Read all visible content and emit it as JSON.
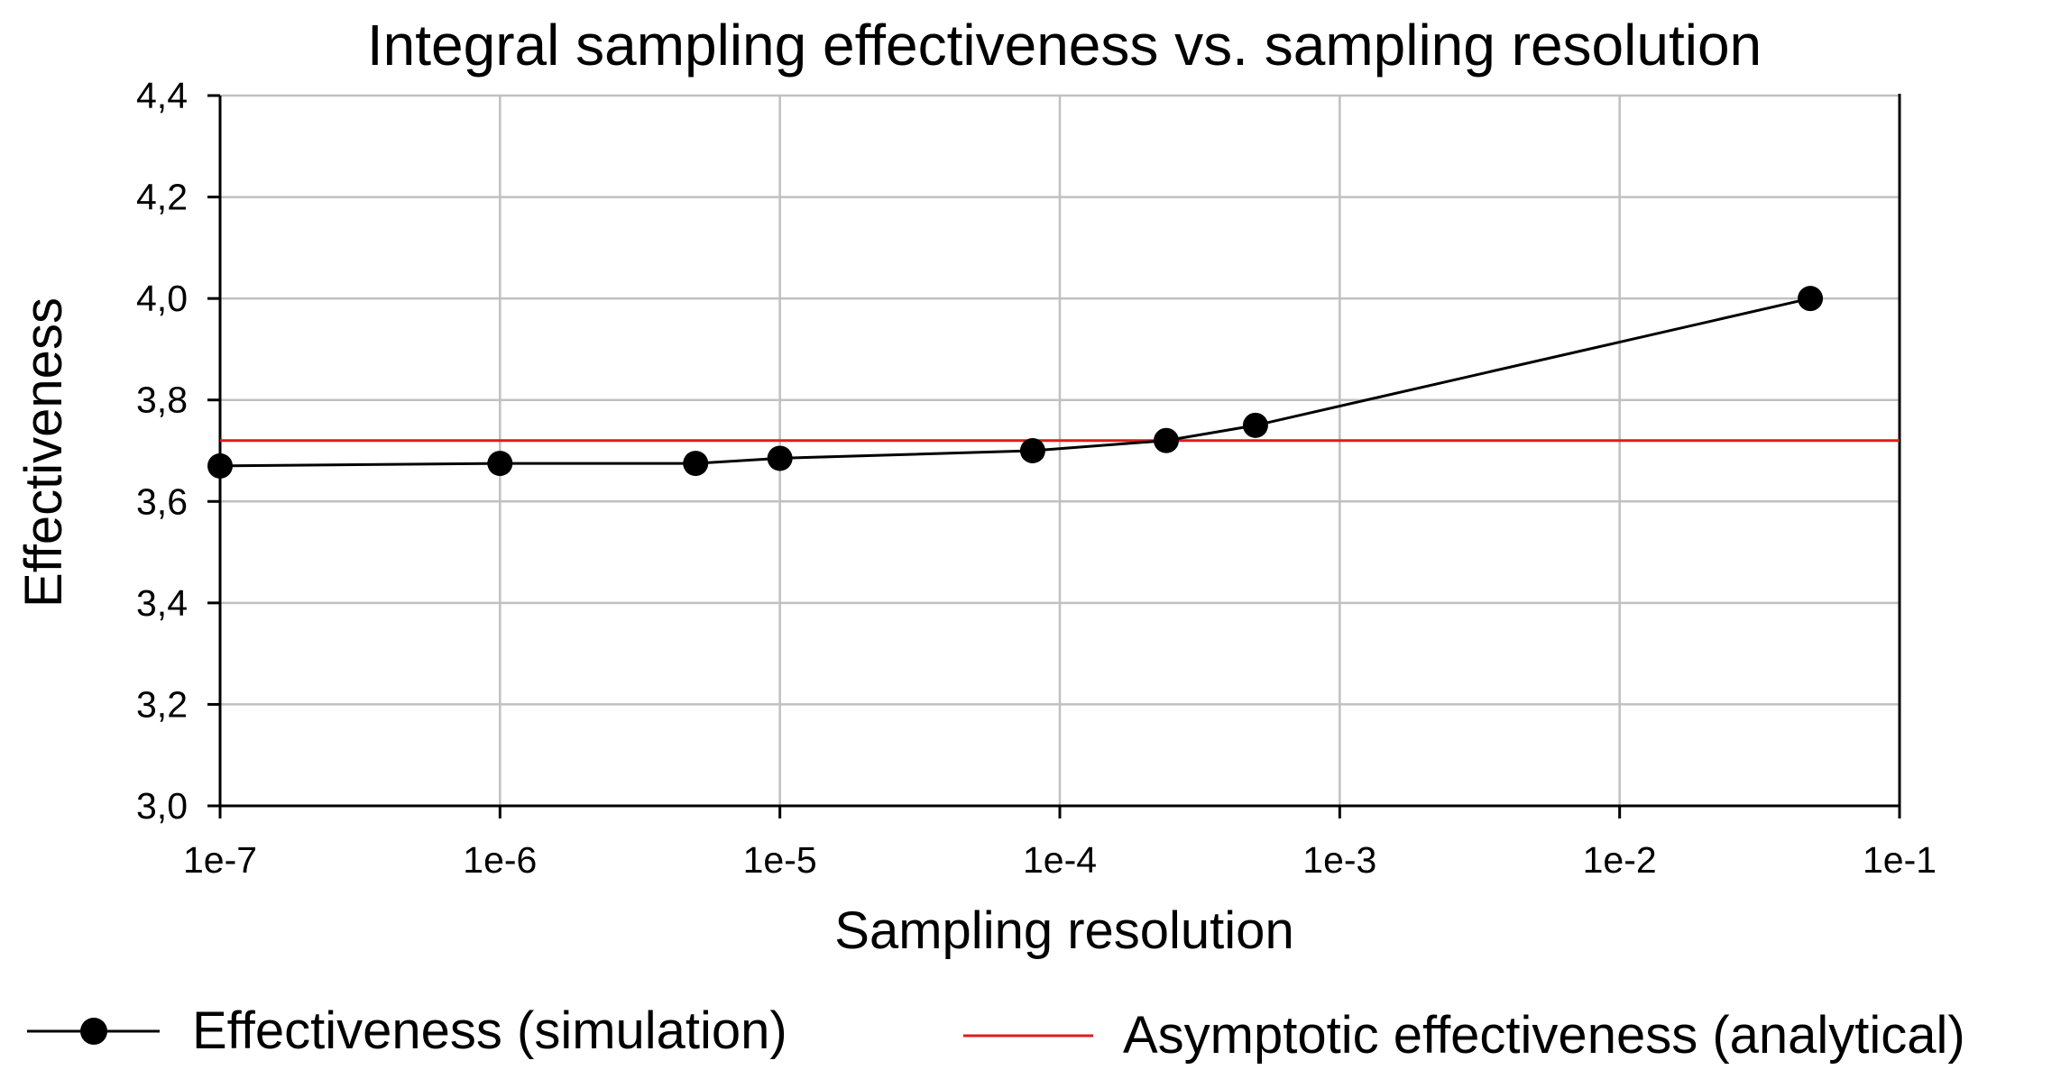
{
  "chart_data": {
    "type": "line",
    "title": "Integral sampling effectiveness vs. sampling resolution",
    "xlabel": "Sampling resolution",
    "ylabel": "Effectiveness",
    "x_scale": "log",
    "xlim": [
      1e-07,
      0.1
    ],
    "ylim": [
      3.0,
      4.4
    ],
    "x_ticks": [
      1e-07,
      1e-06,
      1e-05,
      0.0001,
      0.001,
      0.01,
      0.1
    ],
    "x_tick_labels": [
      "1e-7",
      "1e-6",
      "1e-5",
      "1e-4",
      "1e-3",
      "1e-2",
      "1e-1"
    ],
    "y_ticks": [
      3.0,
      3.2,
      3.4,
      3.6,
      3.8,
      4.0,
      4.2,
      4.4
    ],
    "y_tick_labels": [
      "3,0",
      "3,2",
      "3,4",
      "3,6",
      "3,8",
      "4,0",
      "4,2",
      "4,4"
    ],
    "grid": true,
    "legend_position": "bottom",
    "series": [
      {
        "name": "Effectiveness (simulation)",
        "color": "#000000",
        "marker": "circle",
        "x": [
          1e-07,
          1e-06,
          5e-06,
          1e-05,
          8e-05,
          0.00024,
          0.0005,
          0.048
        ],
        "y": [
          3.67,
          3.675,
          3.675,
          3.685,
          3.7,
          3.72,
          3.75,
          4.0
        ]
      },
      {
        "name": "Asymptotic effectiveness (analytical)",
        "color": "#e31a1c",
        "marker": "none",
        "x": [
          1e-07,
          0.1
        ],
        "y": [
          3.72,
          3.72
        ]
      }
    ]
  }
}
